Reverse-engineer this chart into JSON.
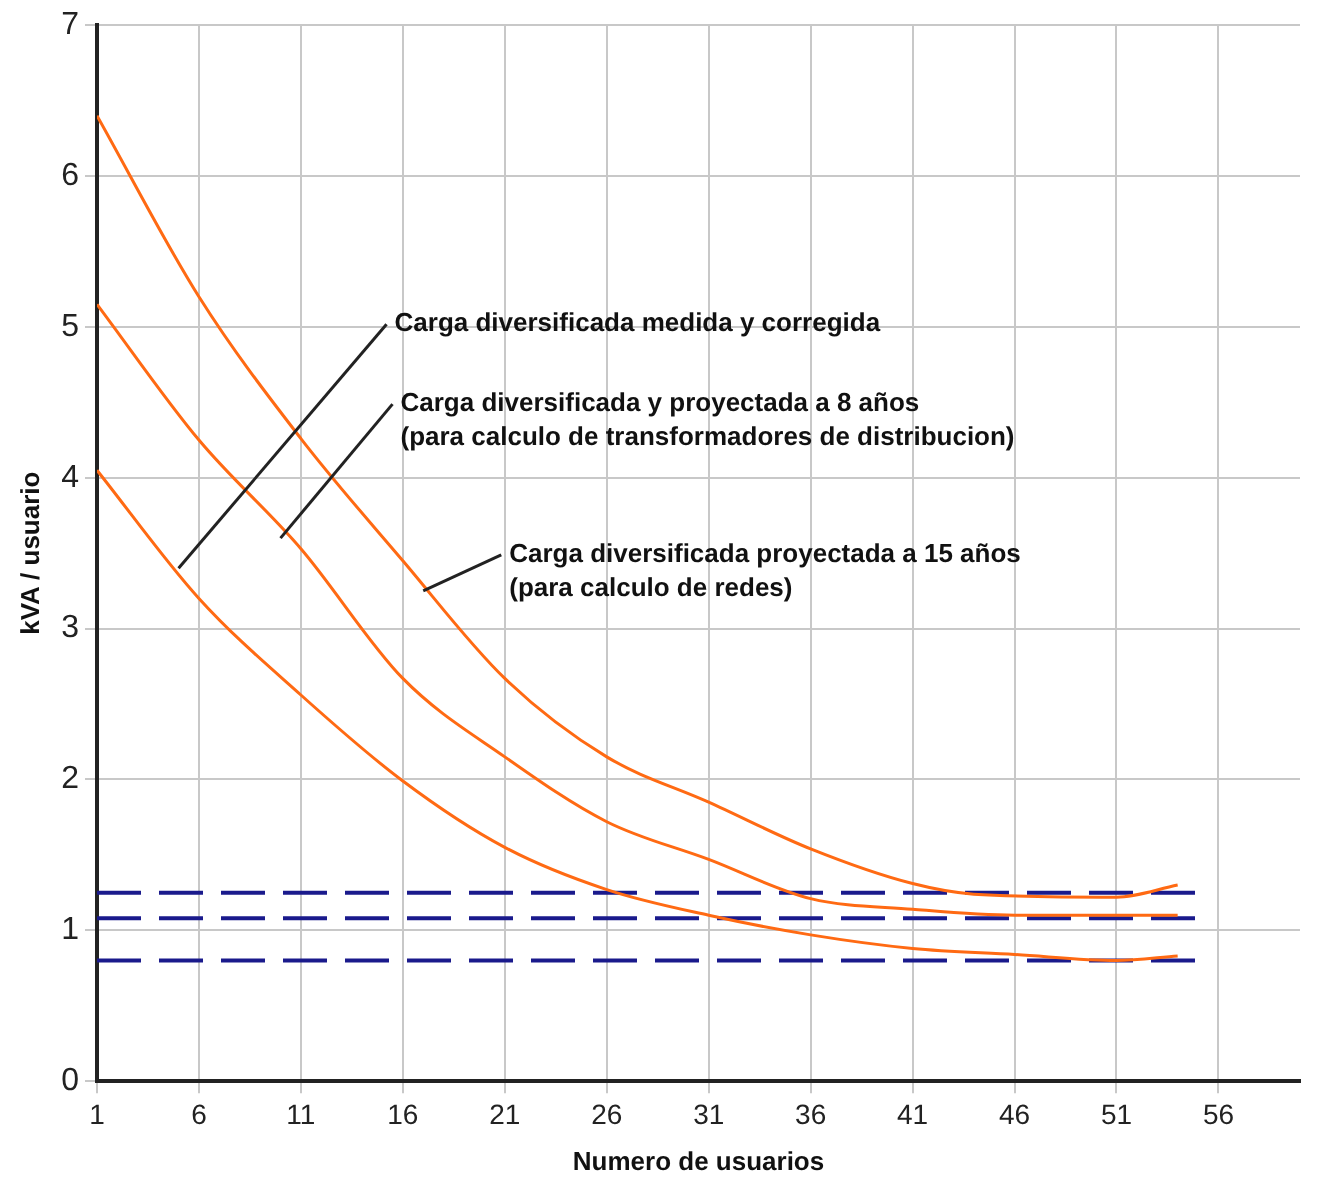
{
  "chart_data": {
    "type": "line",
    "xlabel": "Numero de usuarios",
    "ylabel": "kVA / usuario",
    "xlim": [
      1,
      60
    ],
    "xticks": [
      1,
      6,
      11,
      16,
      21,
      26,
      31,
      36,
      41,
      46,
      51,
      56
    ],
    "ylim": [
      0,
      7
    ],
    "yticks": [
      0,
      1,
      2,
      3,
      4,
      5,
      6,
      7
    ],
    "grid": true,
    "legend": false,
    "marker": "none",
    "line_style": "solid",
    "series": [
      {
        "color": "#ff6a13",
        "x": [
          1,
          6,
          11,
          16,
          21,
          26,
          31,
          36,
          41,
          44,
          51,
          54
        ],
        "values": [
          6.4,
          5.2,
          4.26,
          3.45,
          2.67,
          2.15,
          1.85,
          1.54,
          1.31,
          1.24,
          1.22,
          1.3
        ]
      },
      {
        "color": "#ff6a13",
        "x": [
          1,
          6,
          11,
          16,
          21,
          26,
          31,
          36,
          41,
          46,
          54
        ],
        "values": [
          5.15,
          4.25,
          3.53,
          2.67,
          2.15,
          1.72,
          1.47,
          1.21,
          1.14,
          1.1,
          1.1
        ]
      },
      {
        "color": "#ff6a13",
        "x": [
          1,
          6,
          11,
          16,
          21,
          26,
          31,
          36,
          41,
          46,
          51,
          54
        ],
        "values": [
          4.05,
          3.2,
          2.56,
          1.99,
          1.55,
          1.27,
          1.1,
          0.97,
          0.88,
          0.84,
          0.8,
          0.83
        ]
      }
    ],
    "ref_lines": [
      {
        "axis": "y",
        "value": 1.25,
        "color": "#1a1a8c",
        "line_style": "dashed"
      },
      {
        "axis": "y",
        "value": 1.08,
        "color": "#1a1a8c",
        "line_style": "dashed"
      },
      {
        "axis": "y",
        "value": 0.8,
        "color": "#1a1a8c",
        "line_style": "dashed"
      }
    ],
    "annotations": [
      {
        "text": "Carga diversificada medida y corregida",
        "x": 5,
        "y": 3.4
      },
      {
        "text": "Carga diversificada y proyectada a 8 años\n(para calculo de transformadores de distribucion)",
        "x": 10,
        "y": 3.6
      },
      {
        "text": "Carga diversificada proyectada a 15 años\n(para calculo de redes)",
        "x": 17,
        "y": 3.25
      }
    ]
  }
}
